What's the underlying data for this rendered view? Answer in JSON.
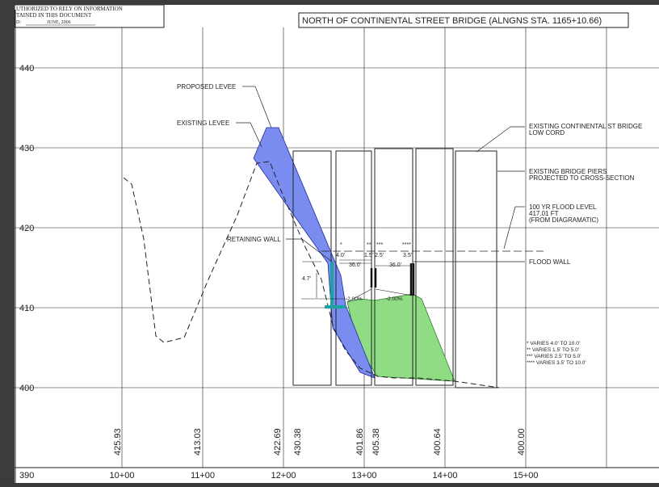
{
  "note": {
    "lines": [
      "UTHORIZED  TO  RELY  ON  INFORMATION",
      "TAINED  IN  THIS  DOCUMENT",
      "D:",
      "JUNE, 2006"
    ]
  },
  "title": "NORTH OF CONTINENTAL STREET BRIDGE (ALNGNS STA. 1165+10.66)",
  "elevations": [
    "440",
    "430",
    "420",
    "410",
    "400",
    "390"
  ],
  "stations": [
    "10+00",
    "11+00",
    "12+00",
    "13+00",
    "14+00",
    "15+00"
  ],
  "ground_elevations": [
    "425.93",
    "413.03",
    "422.69",
    "430.38",
    "401.86",
    "405.38",
    "400.64",
    "400.00"
  ],
  "callouts": {
    "proposed_levee": "PROPOSED LEVEE",
    "existing_levee": "EXISTING LEVEE",
    "retaining_wall": "RETAINING WALL",
    "bridge_low_cord": [
      "EXISTING CONTINENTAL ST BRIDGE",
      "LOW CORD"
    ],
    "bridge_piers": [
      "EXISTING BRIDGE PIERS",
      "PROJECTED TO CROSS-SECTION"
    ],
    "flood_level": [
      "100 YR FLOOD LEVEL",
      "417.01 FT",
      "(FROM DIAGRAMATIC)"
    ],
    "flood_wall": "FLOOD WALL"
  },
  "dimensions": {
    "d1": "4.0'",
    "d2": "1.5'",
    "d3": "2.5'",
    "d4": "3.5'",
    "w1": "36.0'",
    "w2": "36.0'",
    "h1": "4.7'",
    "slope1": "-2.00%",
    "slope2": "-2.00%",
    "m1": "*",
    "m2": "**",
    "m3": "***",
    "m4": "****"
  },
  "legend": [
    "*  VARIES 4.0' TO 10.0'",
    "**  VARIES 1.5' TO 5.0'",
    "***  VARIES 2.5' TO 5.0'",
    "****  VARIES 3.5' TO 10.0'"
  ],
  "colors": {
    "proposed_levee": "#7b8cf0",
    "floodplain": "#8fdc85",
    "retaining_wall": "#1aa3a0"
  }
}
